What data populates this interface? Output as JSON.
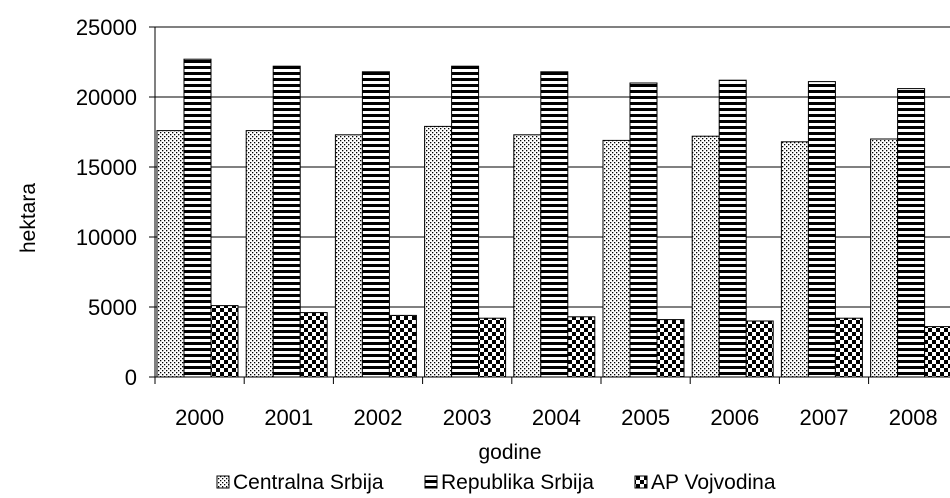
{
  "chart_data": {
    "type": "bar",
    "title": "",
    "xlabel": "godine",
    "ylabel": "hektara",
    "ylim": [
      0,
      25000
    ],
    "yticks": [
      0,
      5000,
      10000,
      15000,
      20000,
      25000
    ],
    "grid": true,
    "legend_position": "bottom",
    "categories": [
      "2000",
      "2001",
      "2002",
      "2003",
      "2004",
      "2005",
      "2006",
      "2007",
      "2008"
    ],
    "series": [
      {
        "name": "Centralna Srbija",
        "pattern": "dots",
        "values": [
          17600,
          17600,
          17300,
          17900,
          17300,
          16900,
          17200,
          16800,
          17000
        ]
      },
      {
        "name": "Republika Srbija",
        "pattern": "horizontal-lines",
        "values": [
          22700,
          22200,
          21800,
          22200,
          21800,
          21000,
          21200,
          21100,
          20600
        ]
      },
      {
        "name": "AP Vojvodina",
        "pattern": "checker",
        "values": [
          5100,
          4600,
          4400,
          4200,
          4300,
          4100,
          4000,
          4200,
          3600
        ]
      }
    ]
  }
}
